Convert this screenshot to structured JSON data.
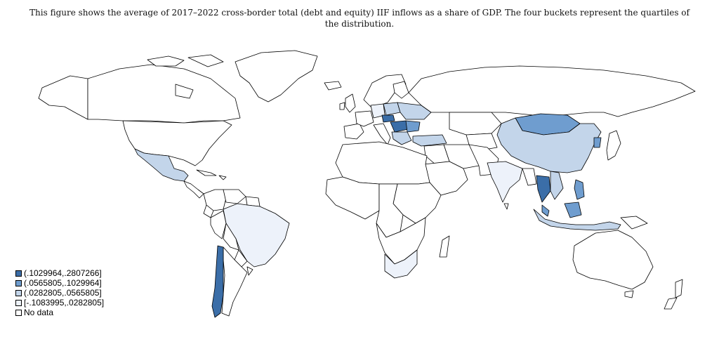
{
  "caption": "This figure shows the average of 2017–2022 cross-border total (debt and equity) IIF inflows as a share of GDP. The four buckets represent the quartiles of the distribution.",
  "legend": {
    "items": [
      {
        "label": "(.1029964,.2807266]",
        "color": "#3b6ea8"
      },
      {
        "label": "(.0565805,.1029964]",
        "color": "#6f9dcf"
      },
      {
        "label": "(.0282805,.0565805]",
        "color": "#c3d5ea"
      },
      {
        "label": "[-.1083995,.0282805]",
        "color": "#edf2fa"
      },
      {
        "label": "No data",
        "color": "#ffffff"
      }
    ]
  },
  "colors": {
    "outline": "#000000",
    "q1": "#edf2fa",
    "q2": "#c3d5ea",
    "q3": "#6f9dcf",
    "q4": "#3b6ea8",
    "nodata": "#ffffff"
  }
}
